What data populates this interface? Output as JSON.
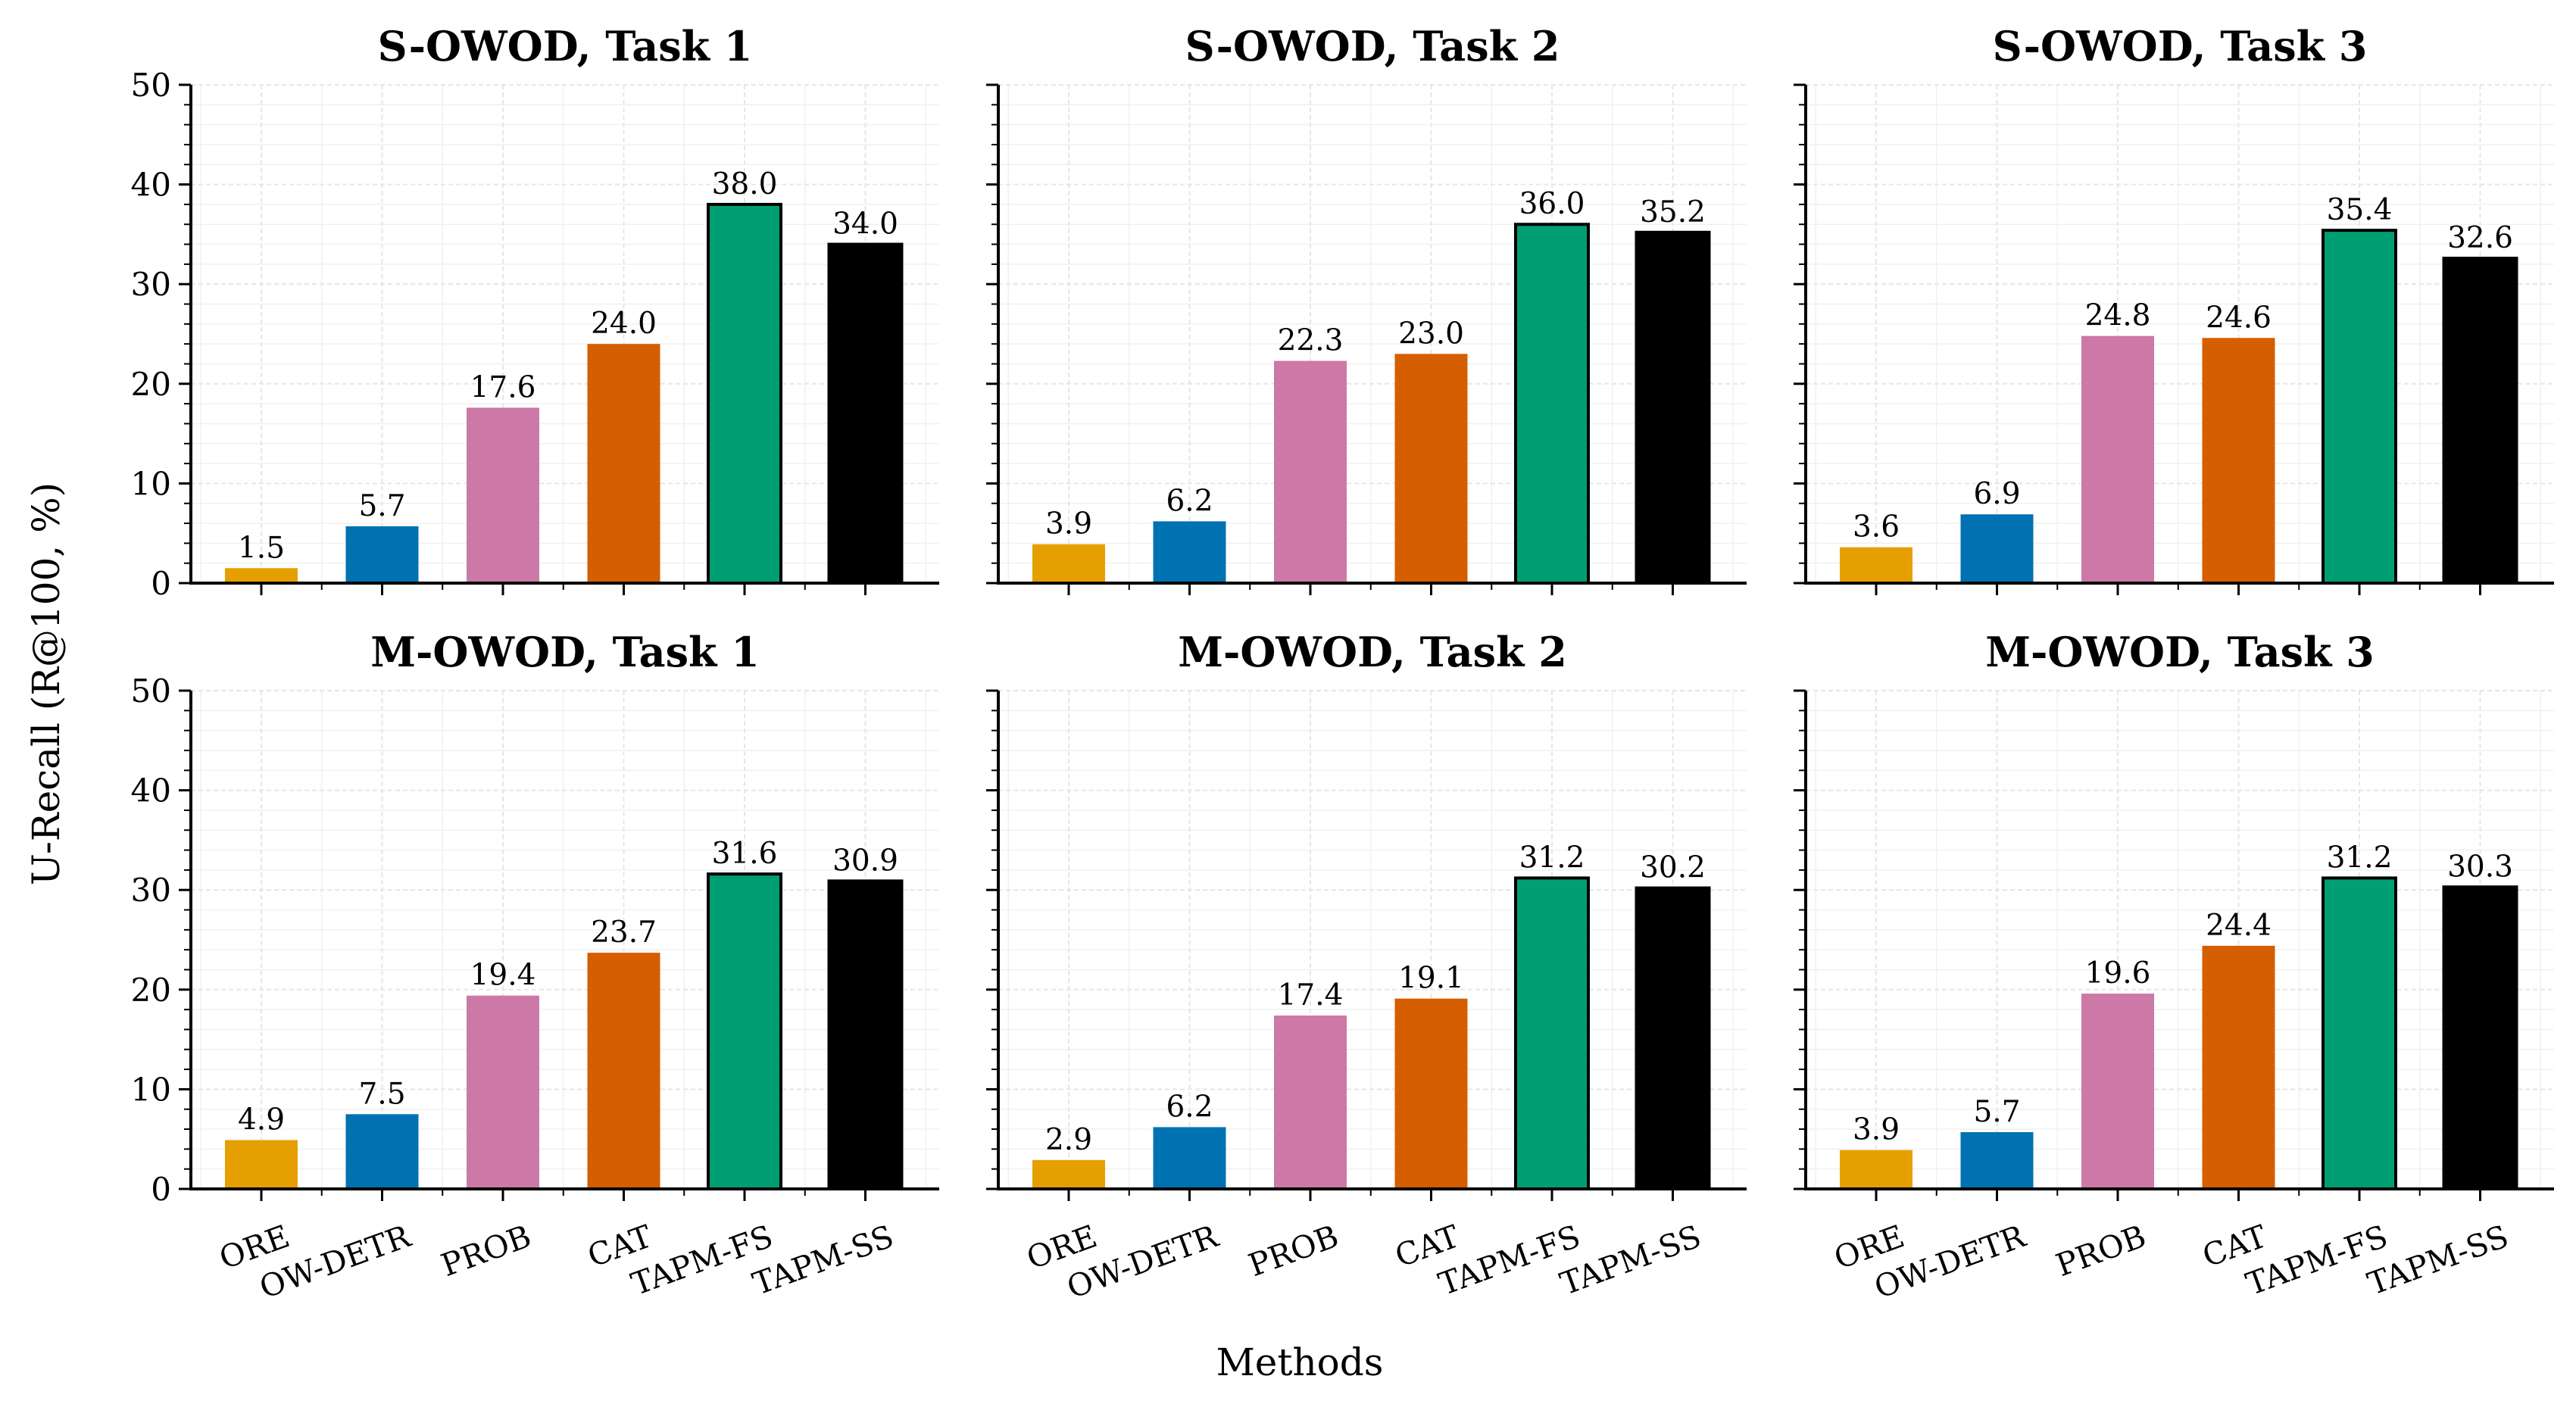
{
  "figure": {
    "ylabel": "U-Recall (R@100, %)",
    "xlabel": "Methods"
  },
  "colors": {
    "ORE": "#E69F00",
    "OW-DETR": "#0072B2",
    "PROB": "#CC79A7",
    "CAT": "#D55E00",
    "TAPM-FS": "#009E73",
    "TAPM-SS": "#000000"
  },
  "chart_data": [
    {
      "type": "bar",
      "title": "S-OWOD, Task 1",
      "categories": [
        "ORE",
        "OW-DETR",
        "PROB",
        "CAT",
        "TAPM-FS",
        "TAPM-SS"
      ],
      "values": [
        1.5,
        5.7,
        17.6,
        24.0,
        38.0,
        34.0
      ],
      "value_labels": [
        "1.5",
        "5.7",
        "17.6",
        "24.0",
        "38.0",
        "34.0"
      ],
      "ylim": [
        0,
        50
      ],
      "yticks": [
        "0",
        "10",
        "20",
        "30",
        "40",
        "50"
      ],
      "grid": true
    },
    {
      "type": "bar",
      "title": "S-OWOD, Task 2",
      "categories": [
        "ORE",
        "OW-DETR",
        "PROB",
        "CAT",
        "TAPM-FS",
        "TAPM-SS"
      ],
      "values": [
        3.9,
        6.2,
        22.3,
        23.0,
        36.0,
        35.2
      ],
      "value_labels": [
        "3.9",
        "6.2",
        "22.3",
        "23.0",
        "36.0",
        "35.2"
      ],
      "ylim": [
        0,
        50
      ],
      "yticks": [
        "0",
        "10",
        "20",
        "30",
        "40",
        "50"
      ],
      "grid": true
    },
    {
      "type": "bar",
      "title": "S-OWOD, Task 3",
      "categories": [
        "ORE",
        "OW-DETR",
        "PROB",
        "CAT",
        "TAPM-FS",
        "TAPM-SS"
      ],
      "values": [
        3.6,
        6.9,
        24.8,
        24.6,
        35.4,
        32.6
      ],
      "value_labels": [
        "3.6",
        "6.9",
        "24.8",
        "24.6",
        "35.4",
        "32.6"
      ],
      "ylim": [
        0,
        50
      ],
      "yticks": [
        "0",
        "10",
        "20",
        "30",
        "40",
        "50"
      ],
      "grid": true
    },
    {
      "type": "bar",
      "title": "M-OWOD, Task 1",
      "categories": [
        "ORE",
        "OW-DETR",
        "PROB",
        "CAT",
        "TAPM-FS",
        "TAPM-SS"
      ],
      "values": [
        4.9,
        7.5,
        19.4,
        23.7,
        31.6,
        30.9
      ],
      "value_labels": [
        "4.9",
        "7.5",
        "19.4",
        "23.7",
        "31.6",
        "30.9"
      ],
      "ylim": [
        0,
        50
      ],
      "yticks": [
        "0",
        "10",
        "20",
        "30",
        "40",
        "50"
      ],
      "grid": true
    },
    {
      "type": "bar",
      "title": "M-OWOD, Task 2",
      "categories": [
        "ORE",
        "OW-DETR",
        "PROB",
        "CAT",
        "TAPM-FS",
        "TAPM-SS"
      ],
      "values": [
        2.9,
        6.2,
        17.4,
        19.1,
        31.2,
        30.2
      ],
      "value_labels": [
        "2.9",
        "6.2",
        "17.4",
        "19.1",
        "31.2",
        "30.2"
      ],
      "ylim": [
        0,
        50
      ],
      "yticks": [
        "0",
        "10",
        "20",
        "30",
        "40",
        "50"
      ],
      "grid": true
    },
    {
      "type": "bar",
      "title": "M-OWOD, Task 3",
      "categories": [
        "ORE",
        "OW-DETR",
        "PROB",
        "CAT",
        "TAPM-FS",
        "TAPM-SS"
      ],
      "values": [
        3.9,
        5.7,
        19.6,
        24.4,
        31.2,
        30.3
      ],
      "value_labels": [
        "3.9",
        "5.7",
        "19.6",
        "24.4",
        "31.2",
        "30.3"
      ],
      "ylim": [
        0,
        50
      ],
      "yticks": [
        "0",
        "10",
        "20",
        "30",
        "40",
        "50"
      ],
      "grid": true
    }
  ]
}
